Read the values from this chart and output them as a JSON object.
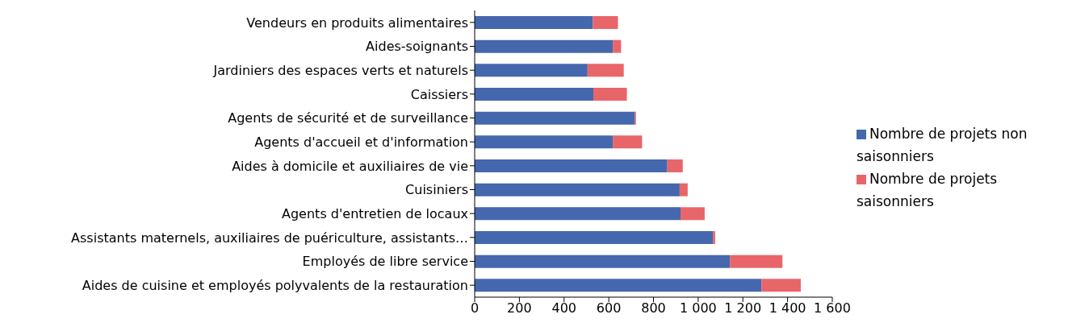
{
  "chart_data": {
    "type": "bar",
    "orientation": "horizontal",
    "stacked": true,
    "categories": [
      "Vendeurs en produits alimentaires",
      "Aides-soignants",
      "Jardiniers des espaces verts et naturels",
      "Caissiers",
      "Agents de sécurité et de surveillance",
      "Agents d'accueil et d'information",
      "Aides à domicile et auxiliaires de vie",
      "Cuisiniers",
      "Agents d'entretien de locaux",
      "Assistants maternels, auxiliaires de puériculture, assistants…",
      "Employés de libre service",
      "Aides de cuisine et employés polyvalents de la restauration"
    ],
    "series": [
      {
        "name": "Nombre de projets non saisonniers",
        "color": "#4567ad",
        "values": [
          529,
          618,
          505,
          531,
          717,
          618,
          862,
          917,
          921,
          1066,
          1142,
          1283
        ]
      },
      {
        "name": "Nombre de projets saisonniers",
        "color": "#e8666a",
        "values": [
          112,
          37,
          162,
          150,
          5,
          131,
          69,
          36,
          108,
          10,
          235,
          176
        ]
      }
    ],
    "xlim": [
      0,
      1600
    ],
    "xticks": [
      0,
      200,
      400,
      600,
      800,
      {
        "value": 1000,
        "label": "1 000"
      },
      {
        "value": 1200,
        "label": "1 200"
      },
      {
        "value": 1400,
        "label": "1 400"
      },
      {
        "value": 1600,
        "label": "1 600"
      }
    ],
    "legend": "right"
  }
}
